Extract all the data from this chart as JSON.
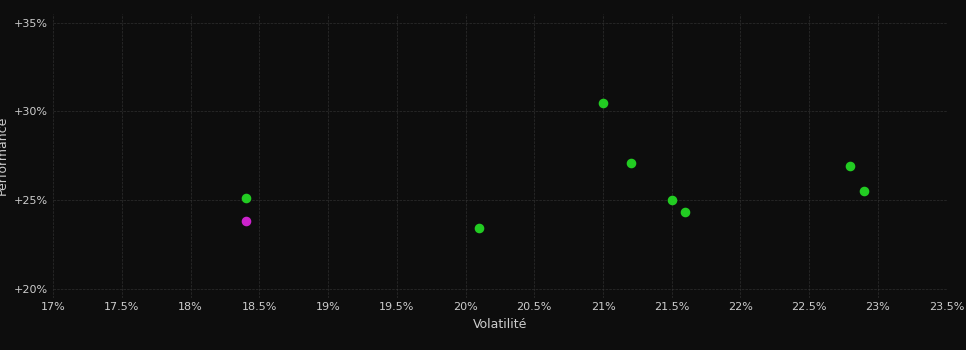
{
  "xlabel": "Volatilité",
  "ylabel": "Performance",
  "background_color": "#0d0d0d",
  "grid_color": "#444444",
  "text_color": "#cccccc",
  "xlim": [
    0.17,
    0.235
  ],
  "ylim": [
    0.195,
    0.355
  ],
  "xticks": [
    0.17,
    0.175,
    0.18,
    0.185,
    0.19,
    0.195,
    0.2,
    0.205,
    0.21,
    0.215,
    0.22,
    0.225,
    0.23,
    0.235
  ],
  "xtick_labels": [
    "17%",
    "17.5%",
    "18%",
    "18.5%",
    "19%",
    "19.5%",
    "20%",
    "20.5%",
    "21%",
    "21.5%",
    "22%",
    "22.5%",
    "23%",
    "23.5%"
  ],
  "yticks": [
    0.2,
    0.25,
    0.3,
    0.35
  ],
  "ytick_labels": [
    "+20%",
    "+25%",
    "+30%",
    "+35%"
  ],
  "points_green": [
    [
      0.184,
      0.251
    ],
    [
      0.201,
      0.234
    ],
    [
      0.21,
      0.305
    ],
    [
      0.212,
      0.271
    ],
    [
      0.215,
      0.25
    ],
    [
      0.216,
      0.243
    ],
    [
      0.228,
      0.269
    ],
    [
      0.229,
      0.255
    ]
  ],
  "points_magenta": [
    [
      0.184,
      0.238
    ]
  ],
  "point_size": 35,
  "dot_color_green": "#22cc22",
  "dot_color_magenta": "#cc22cc"
}
